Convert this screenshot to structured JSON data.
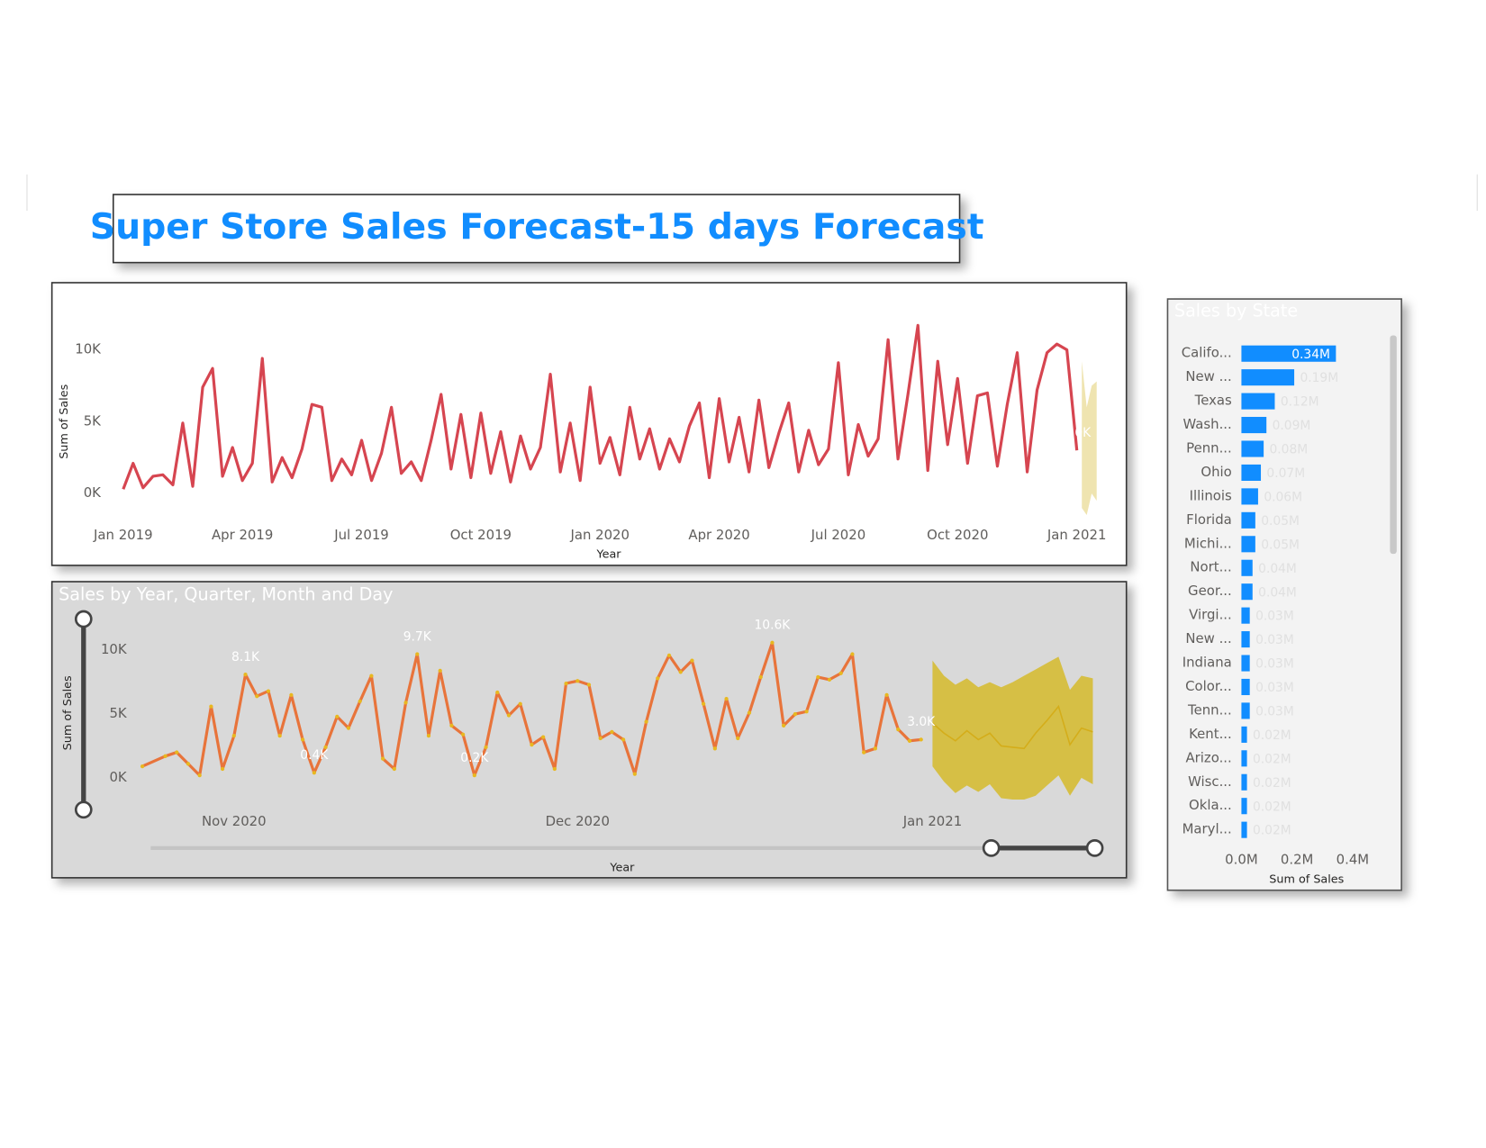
{
  "title": "Super Store Sales Forecast-15 days Forecast",
  "chart_data": [
    {
      "type": "line",
      "x_label": "Year",
      "y_label": "Sum of Sales",
      "x": [
        0,
        0.25,
        0.5,
        0.75,
        1,
        1.25,
        1.5,
        1.75,
        2,
        2.25,
        2.5,
        2.75,
        3,
        3.25,
        3.5,
        3.75,
        4,
        4.25,
        4.5,
        4.75,
        5,
        5.25,
        5.5,
        5.75,
        6,
        6.25,
        6.5,
        6.75,
        7,
        7.25,
        7.5,
        7.75,
        8,
        8.25,
        8.5,
        8.75,
        9,
        9.25,
        9.5,
        9.75,
        10,
        10.25,
        10.5,
        10.75,
        11,
        11.25,
        11.5,
        11.75,
        12,
        12.25,
        12.5,
        12.75,
        13,
        13.25,
        13.5,
        13.75,
        14,
        14.25,
        14.5,
        14.75,
        15,
        15.25,
        15.5,
        15.75,
        16,
        16.25,
        16.5,
        16.75,
        17,
        17.25,
        17.5,
        17.75,
        18,
        18.25,
        18.5,
        18.75,
        19,
        19.25,
        19.5,
        19.75,
        20,
        20.25,
        20.5,
        20.75,
        21,
        21.25,
        21.5,
        21.75,
        22,
        22.25,
        22.5,
        22.75,
        23,
        23.25,
        23.5,
        23.75,
        24
      ],
      "series": [
        {
          "color": "#d64550",
          "values": [
            300,
            2100,
            400,
            1200,
            1300,
            600,
            4900,
            500,
            7400,
            8700,
            1200,
            3200,
            900,
            2100,
            9400,
            800,
            2500,
            1100,
            3100,
            6200,
            6000,
            900,
            2400,
            1300,
            3700,
            900,
            2800,
            6000,
            1400,
            2200,
            900,
            3700,
            6900,
            1700,
            5500,
            1100,
            5600,
            1400,
            4300,
            800,
            4000,
            1700,
            3200,
            8300,
            1500,
            4900,
            900,
            7400,
            2100,
            3900,
            1300,
            6000,
            2400,
            4500,
            1700,
            3800,
            2200,
            4700,
            6300,
            1100,
            6600,
            2200,
            5300,
            1500,
            6500,
            1800,
            4200,
            6300,
            1500,
            4400,
            2000,
            3100,
            9100,
            1300,
            4800,
            2600,
            3800,
            10700,
            2400,
            6900,
            11700,
            1600,
            9200,
            3400,
            8000,
            2100,
            6800,
            7000,
            1900,
            6200,
            9800,
            1500,
            7200,
            9800,
            10400,
            10000,
            3000
          ],
          "value_labels": [
            null,
            null,
            null,
            null,
            null,
            null,
            null,
            null,
            null,
            null,
            null,
            null,
            null,
            null,
            null,
            null,
            null,
            null,
            null,
            null,
            null,
            null,
            null,
            null,
            null,
            null,
            null,
            null,
            null,
            null,
            null,
            null,
            null,
            null,
            null,
            null,
            null,
            null,
            null,
            null,
            null,
            null,
            null,
            null,
            null,
            null,
            null,
            null,
            null,
            null,
            null,
            null,
            null,
            null,
            null,
            null,
            null,
            null,
            null,
            null,
            null,
            null,
            null,
            null,
            null,
            null,
            null,
            null,
            null,
            null,
            null,
            null,
            null,
            null,
            null,
            null,
            null,
            null,
            null,
            null,
            null,
            null,
            null,
            null,
            null,
            null,
            null,
            null,
            null,
            null,
            null,
            null,
            null,
            null,
            null,
            null,
            "3.0K"
          ]
        }
      ],
      "forecast": {
        "x": [
          24.125,
          24.25,
          24.375,
          24.5
        ],
        "upper": [
          9200,
          6000,
          7500,
          7800
        ],
        "lower": [
          -1000,
          -1500,
          0,
          -500
        ],
        "band_color": "#efe4b0"
      },
      "xlim": [
        -0.25,
        24.5
      ],
      "xticks": [
        {
          "value": 0,
          "label": "Jan 2019"
        },
        {
          "value": 3,
          "label": "Apr 2019"
        },
        {
          "value": 6,
          "label": "Jul 2019"
        },
        {
          "value": 9,
          "label": "Oct 2019"
        },
        {
          "value": 12,
          "label": "Jan 2020"
        },
        {
          "value": 15,
          "label": "Apr 2020"
        },
        {
          "value": 18,
          "label": "Jul 2020"
        },
        {
          "value": 21,
          "label": "Oct 2020"
        },
        {
          "value": 24,
          "label": "Jan 2021"
        }
      ],
      "ylim": [
        -2000,
        12000
      ],
      "yticks": [
        {
          "value": 0,
          "label": "0K"
        },
        {
          "value": 5000,
          "label": "5K"
        },
        {
          "value": 10000,
          "label": "10K"
        }
      ],
      "grid": false
    },
    {
      "type": "line",
      "title": "Sales by Year, Quarter, Month and Day",
      "x_label": "Year",
      "y_label": "Sum of Sales",
      "x": [
        -8,
        -6,
        -5,
        -4,
        -3,
        -2,
        -1,
        0,
        1,
        2,
        3,
        4,
        5,
        6,
        7,
        8,
        9,
        10,
        11,
        12,
        13,
        14,
        15,
        16,
        17,
        18,
        19,
        20,
        21,
        22,
        23,
        24,
        25,
        26,
        27,
        28,
        29,
        30,
        31,
        32,
        33,
        34,
        35,
        36,
        37,
        38,
        39,
        40,
        41,
        42,
        43,
        44,
        45,
        46,
        47,
        48,
        49,
        50,
        51,
        52,
        53,
        54,
        55,
        56,
        57,
        58,
        59,
        60
      ],
      "series": [
        {
          "color": "#e8743b",
          "marker_color": "#e8b820",
          "values": [
            900,
            1700,
            2000,
            1100,
            200,
            5600,
            700,
            3300,
            8100,
            6400,
            6800,
            3300,
            6500,
            3000,
            400,
            2400,
            4800,
            3900,
            6000,
            8000,
            1500,
            700,
            5900,
            9700,
            3300,
            8400,
            4100,
            3400,
            200,
            2400,
            6700,
            4900,
            5800,
            2600,
            3200,
            700,
            7400,
            7600,
            7300,
            3100,
            3600,
            3000,
            300,
            4400,
            7800,
            9600,
            8300,
            9200,
            5800,
            2300,
            6200,
            3100,
            5100,
            7900,
            10600,
            4100,
            5000,
            5200,
            7900,
            7700,
            8200,
            9700,
            2000,
            2300,
            6500,
            3800,
            2900,
            3000
          ],
          "value_labels": [
            null,
            null,
            null,
            null,
            null,
            null,
            null,
            null,
            "8.1K",
            null,
            null,
            null,
            null,
            null,
            "0.4K",
            null,
            null,
            null,
            null,
            null,
            null,
            null,
            null,
            "9.7K",
            null,
            null,
            null,
            null,
            "0.2K",
            null,
            null,
            null,
            null,
            null,
            null,
            null,
            null,
            null,
            null,
            null,
            null,
            null,
            null,
            null,
            null,
            null,
            null,
            null,
            null,
            null,
            null,
            null,
            null,
            null,
            "10.6K",
            null,
            null,
            null,
            null,
            null,
            null,
            null,
            null,
            null,
            null,
            null,
            null,
            "3.0K"
          ]
        }
      ],
      "forecast": {
        "x": [
          61,
          62,
          63,
          64,
          65,
          66,
          67,
          68,
          69,
          70,
          71,
          72,
          73,
          74,
          75
        ],
        "values": [
          4300,
          3500,
          2900,
          3700,
          3000,
          3500,
          2500,
          2400,
          2300,
          3500,
          4500,
          5600,
          2600,
          3900,
          3600
        ],
        "upper": [
          9200,
          8000,
          7300,
          7800,
          7100,
          7500,
          7100,
          7500,
          8000,
          8500,
          9000,
          9500,
          6900,
          8000,
          7800
        ],
        "lower": [
          900,
          -300,
          -1200,
          -600,
          -1100,
          -500,
          -1600,
          -1700,
          -1700,
          -1400,
          -600,
          200,
          -1400,
          0,
          -500
        ],
        "color": "#d4ad1a",
        "band_color": "#d6bf45"
      },
      "xlim": [
        -8.5,
        75
      ],
      "xticks": [
        {
          "value": 0,
          "label": "Nov 2020"
        },
        {
          "value": 30,
          "label": "Dec 2020"
        },
        {
          "value": 61,
          "label": "Jan 2021"
        }
      ],
      "ylim": [
        -2500,
        12000
      ],
      "yticks": [
        {
          "value": 0,
          "label": "0K"
        },
        {
          "value": 5000,
          "label": "5K"
        },
        {
          "value": 10000,
          "label": "10K"
        }
      ],
      "grid": false
    },
    {
      "type": "bar",
      "orientation": "horizontal",
      "title": "Sales by State",
      "x_label": "Sum of Sales",
      "categories": [
        "Califo...",
        "New ...",
        "Texas",
        "Wash...",
        "Penn...",
        "Ohio",
        "Illinois",
        "Florida",
        "Michi...",
        "Nort...",
        "Geor...",
        "Virgi...",
        "New ...",
        "Indiana",
        "Color...",
        "Tenn...",
        "Kent...",
        "Arizo...",
        "Wisc...",
        "Okla...",
        "Maryl..."
      ],
      "values": [
        340000,
        190000,
        120000,
        90000,
        80000,
        70000,
        60000,
        50000,
        50000,
        40000,
        40000,
        30000,
        30000,
        30000,
        30000,
        30000,
        20000,
        20000,
        20000,
        20000,
        20000
      ],
      "value_labels": [
        "0.34M",
        "0.19M",
        "0.12M",
        "0.09M",
        "0.08M",
        "0.07M",
        "0.06M",
        "0.05M",
        "0.05M",
        "0.04M",
        "0.04M",
        "0.03M",
        "0.03M",
        "0.03M",
        "0.03M",
        "0.03M",
        "0.02M",
        "0.02M",
        "0.02M",
        "0.02M",
        "0.02M"
      ],
      "color": "#118dff",
      "xlim": [
        0,
        500000
      ],
      "xticks": [
        {
          "value": 0,
          "label": "0.0M"
        },
        {
          "value": 200000,
          "label": "0.2M"
        },
        {
          "value": 400000,
          "label": "0.4M"
        }
      ]
    }
  ]
}
